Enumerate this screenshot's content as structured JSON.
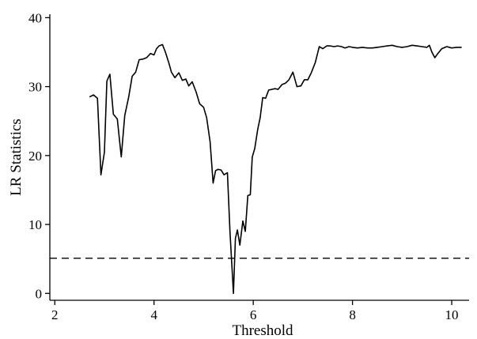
{
  "chart_data": {
    "type": "line",
    "title": "",
    "xlabel": "Threshold",
    "ylabel": "LR Statistics",
    "xlim": [
      1.9,
      10.35
    ],
    "ylim": [
      -1,
      40.5
    ],
    "xticks": [
      2,
      4,
      6,
      8,
      10
    ],
    "yticks": [
      0,
      10,
      20,
      30,
      40
    ],
    "xtick_labels": [
      "2",
      "4",
      "6",
      "8",
      "10"
    ],
    "ytick_labels": [
      "0",
      "10",
      "20",
      "30",
      "40"
    ],
    "grid": false,
    "legend": "none",
    "series": [
      {
        "style": "solid",
        "color": "#000000",
        "x": [
          2.7,
          2.78,
          2.86,
          2.93,
          3.0,
          3.05,
          3.11,
          3.18,
          3.26,
          3.34,
          3.41,
          3.49,
          3.56,
          3.63,
          3.7,
          3.78,
          3.85,
          3.93,
          4.0,
          4.05,
          4.1,
          4.17,
          4.23,
          4.3,
          4.35,
          4.42,
          4.5,
          4.57,
          4.64,
          4.7,
          4.77,
          4.85,
          4.92,
          5.0,
          5.06,
          5.13,
          5.19,
          5.24,
          5.29,
          5.35,
          5.41,
          5.48,
          5.53,
          5.6,
          5.64,
          5.68,
          5.73,
          5.79,
          5.84,
          5.89,
          5.94,
          5.98,
          6.03,
          6.09,
          6.14,
          6.19,
          6.25,
          6.31,
          6.37,
          6.44,
          6.5,
          6.58,
          6.65,
          6.72,
          6.8,
          6.88,
          6.96,
          7.03,
          7.1,
          7.17,
          7.25,
          7.33,
          7.4,
          7.48,
          7.55,
          7.63,
          7.7,
          7.78,
          7.85,
          7.93,
          8.0,
          8.1,
          8.2,
          8.3,
          8.4,
          8.5,
          8.6,
          8.7,
          8.8,
          8.9,
          9.0,
          9.1,
          9.2,
          9.3,
          9.4,
          9.5,
          9.55,
          9.6,
          9.66,
          9.72,
          9.8,
          9.9,
          10.0,
          10.1,
          10.2
        ],
        "y": [
          28.5,
          28.8,
          28.3,
          17.2,
          20.5,
          30.8,
          31.8,
          26.0,
          25.3,
          19.8,
          25.8,
          28.5,
          31.5,
          32.1,
          33.9,
          34.0,
          34.2,
          34.8,
          34.6,
          35.5,
          35.9,
          36.1,
          35.0,
          33.4,
          32.1,
          31.3,
          32.0,
          30.9,
          31.1,
          30.1,
          30.7,
          29.2,
          27.5,
          27.0,
          25.5,
          22.0,
          16.0,
          17.8,
          18.0,
          17.9,
          17.2,
          17.5,
          9.0,
          0.0,
          8.0,
          9.2,
          7.0,
          10.5,
          9.0,
          14.2,
          14.3,
          19.8,
          21.0,
          23.8,
          25.5,
          28.4,
          28.3,
          29.5,
          29.6,
          29.7,
          29.6,
          30.3,
          30.5,
          31.0,
          32.1,
          30.0,
          30.1,
          31.0,
          31.0,
          32.0,
          33.5,
          35.8,
          35.5,
          35.9,
          35.9,
          35.8,
          35.9,
          35.8,
          35.6,
          35.8,
          35.7,
          35.6,
          35.7,
          35.6,
          35.6,
          35.7,
          35.8,
          35.9,
          36.0,
          35.8,
          35.7,
          35.8,
          36.0,
          35.9,
          35.8,
          35.7,
          36.0,
          35.0,
          34.2,
          34.8,
          35.5,
          35.8,
          35.6,
          35.7,
          35.7
        ]
      },
      {
        "style": "dashed",
        "color": "#000000",
        "x": [
          1.9,
          10.35
        ],
        "y": [
          5.1,
          5.1
        ]
      }
    ]
  }
}
